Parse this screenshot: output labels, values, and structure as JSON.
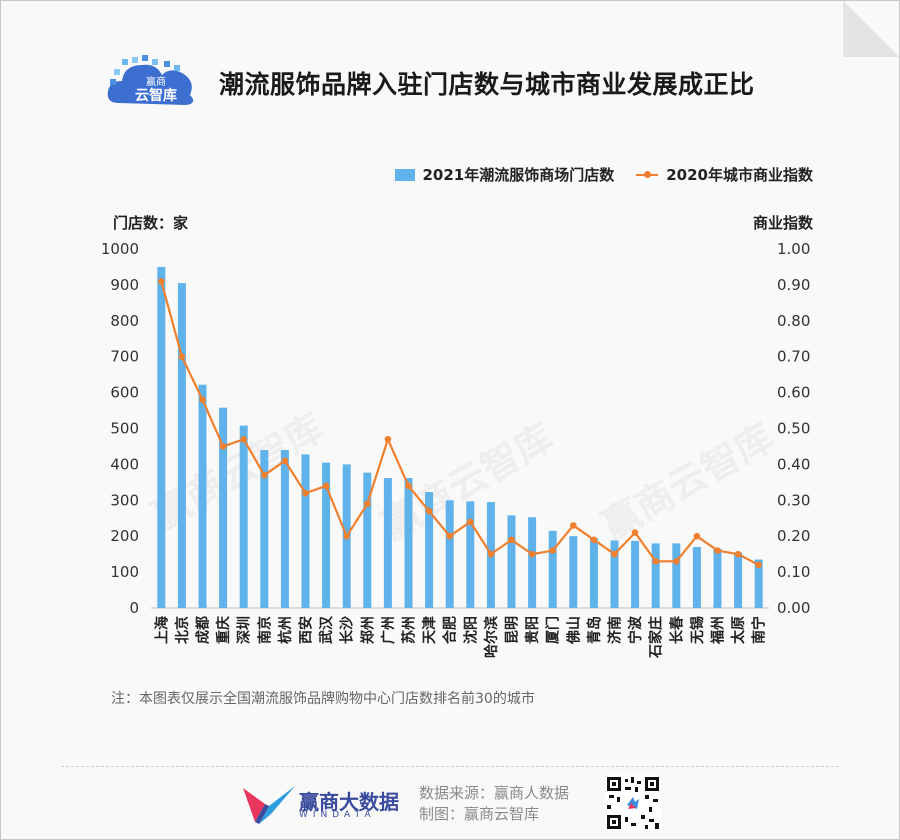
{
  "header": {
    "logo_text_top": "赢商",
    "logo_text_main": "云智库",
    "title": "潮流服饰品牌入驻门店数与城市商业发展成正比"
  },
  "legend": {
    "bar_label": "2021年潮流服饰商场门店数",
    "line_label": "2020年城市商业指数"
  },
  "axes": {
    "left_title": "门店数：家",
    "right_title": "商业指数"
  },
  "watermark": "赢商云智库",
  "note": "注：本图表仅展示全国潮流服饰品牌购物中心门店数排名前30的城市",
  "footer": {
    "brand": "赢商大数据",
    "brand_sub": "WINDATA",
    "source": "数据来源：赢商人数据",
    "maker": "制图：赢商云智库"
  },
  "colors": {
    "bar": "#5fb2ea",
    "line": "#f07f2e",
    "brand": "#3a4b9e"
  },
  "chart_data": {
    "type": "bar",
    "categories": [
      "上海",
      "北京",
      "成都",
      "重庆",
      "深圳",
      "南京",
      "杭州",
      "西安",
      "武汉",
      "长沙",
      "郑州",
      "广州",
      "苏州",
      "天津",
      "合肥",
      "沈阳",
      "哈尔滨",
      "昆明",
      "贵阳",
      "厦门",
      "佛山",
      "青岛",
      "济南",
      "宁波",
      "石家庄",
      "长春",
      "无锡",
      "福州",
      "太原",
      "南宁"
    ],
    "series": [
      {
        "name": "2021年潮流服饰商场门店数",
        "type": "bar",
        "axis": "left",
        "values": [
          950,
          905,
          622,
          558,
          508,
          440,
          440,
          428,
          405,
          400,
          377,
          362,
          362,
          323,
          300,
          297,
          295,
          258,
          253,
          215,
          200,
          195,
          188,
          187,
          180,
          180,
          170,
          165,
          155,
          135
        ]
      },
      {
        "name": "2020年城市商业指数",
        "type": "line",
        "axis": "right",
        "values": [
          0.91,
          0.7,
          0.58,
          0.45,
          0.47,
          0.37,
          0.41,
          0.32,
          0.34,
          0.2,
          0.29,
          0.47,
          0.34,
          0.27,
          0.2,
          0.24,
          0.15,
          0.19,
          0.15,
          0.16,
          0.23,
          0.19,
          0.15,
          0.21,
          0.13,
          0.13,
          0.2,
          0.16,
          0.15,
          0.12
        ]
      }
    ],
    "y_left": {
      "min": 0,
      "max": 1000,
      "ticks": [
        "0",
        "100",
        "200",
        "300",
        "400",
        "500",
        "600",
        "700",
        "800",
        "900",
        "1000"
      ]
    },
    "y_right": {
      "min": 0,
      "max": 1,
      "ticks": [
        "0.00",
        "0.10",
        "0.20",
        "0.30",
        "0.40",
        "0.50",
        "0.60",
        "0.70",
        "0.80",
        "0.90",
        "1.00"
      ]
    },
    "grid": false,
    "legend_position": "top-right"
  }
}
